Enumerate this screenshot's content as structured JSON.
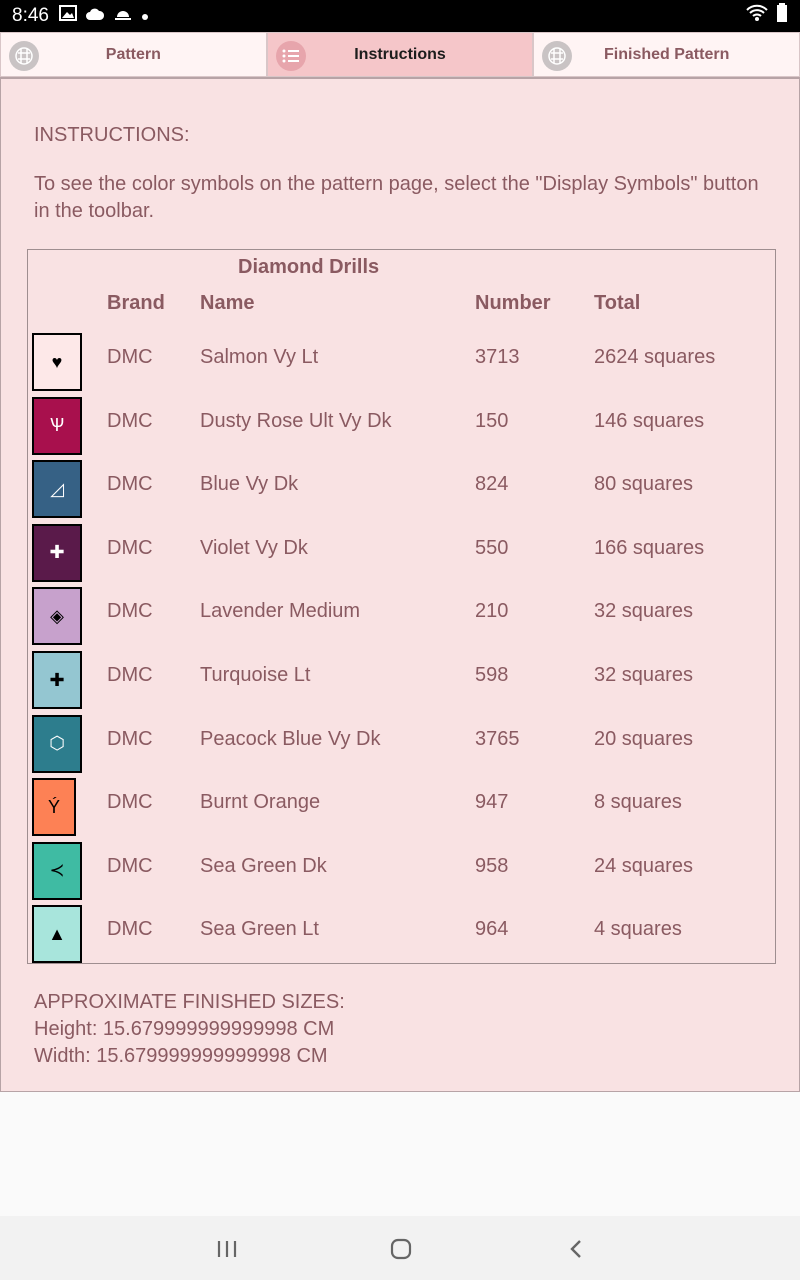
{
  "status_bar": {
    "time": "8:46"
  },
  "tabs": [
    {
      "label": "Pattern",
      "active": false
    },
    {
      "label": "Instructions",
      "active": true
    },
    {
      "label": "Finished Pattern",
      "active": false
    }
  ],
  "instructions": {
    "heading": "INSTRUCTIONS:",
    "description": "To see the color symbols on the pattern page, select the \"Display Symbols\" button in the toolbar."
  },
  "drills": {
    "caption": "Diamond Drills",
    "columns": [
      "Brand",
      "Name",
      "Number",
      "Total"
    ],
    "rows": [
      {
        "symbol": "♥",
        "color": "#fde8e8",
        "symbol_color": "#000000",
        "brand": "DMC",
        "name": "Salmon Vy Lt",
        "number": "3713",
        "total": "2624 squares"
      },
      {
        "symbol": "Ѱ",
        "color": "#a8104d",
        "symbol_color": "#ffffff",
        "brand": "DMC",
        "name": "Dusty Rose Ult Vy Dk",
        "number": "150",
        "total": "146 squares"
      },
      {
        "symbol": "◿",
        "color": "#366185",
        "symbol_color": "#ffffff",
        "brand": "DMC",
        "name": "Blue Vy Dk",
        "number": "824",
        "total": "80 squares"
      },
      {
        "symbol": "✚",
        "color": "#5a1a4a",
        "symbol_color": "#ffffff",
        "brand": "DMC",
        "name": "Violet Vy Dk",
        "number": "550",
        "total": "166 squares"
      },
      {
        "symbol": "◈",
        "color": "#c7a1cc",
        "symbol_color": "#000000",
        "brand": "DMC",
        "name": "Lavender Medium",
        "number": "210",
        "total": "32 squares"
      },
      {
        "symbol": "✚",
        "color": "#94c6d1",
        "symbol_color": "#000000",
        "brand": "DMC",
        "name": "Turquoise Lt",
        "number": "598",
        "total": "32 squares"
      },
      {
        "symbol": "⬡",
        "color": "#2d7d8d",
        "symbol_color": "#ffffff",
        "brand": "DMC",
        "name": "Peacock Blue Vy Dk",
        "number": "3765",
        "total": "20 squares"
      },
      {
        "symbol": "Ý",
        "color": "#fd8155",
        "symbol_color": "#000000",
        "brand": "DMC",
        "name": "Burnt Orange",
        "number": "947",
        "total": "8 squares"
      },
      {
        "symbol": "≺",
        "color": "#3fbba3",
        "symbol_color": "#000000",
        "brand": "DMC",
        "name": "Sea Green Dk",
        "number": "958",
        "total": "24 squares"
      },
      {
        "symbol": "▲",
        "color": "#a8e5dc",
        "symbol_color": "#000000",
        "brand": "DMC",
        "name": "Sea Green Lt",
        "number": "964",
        "total": "4 squares"
      }
    ]
  },
  "sizes": {
    "heading": "APPROXIMATE FINISHED SIZES:",
    "height": "Height: 15.679999999999998 CM",
    "width": "Width: 15.679999999999998 CM"
  },
  "icons": {
    "tab_pattern": "grid-icon",
    "tab_instructions": "list-icon",
    "tab_finished": "grid-icon",
    "nav_recents": "recents-icon",
    "nav_home": "home-icon",
    "nav_back": "back-icon"
  }
}
